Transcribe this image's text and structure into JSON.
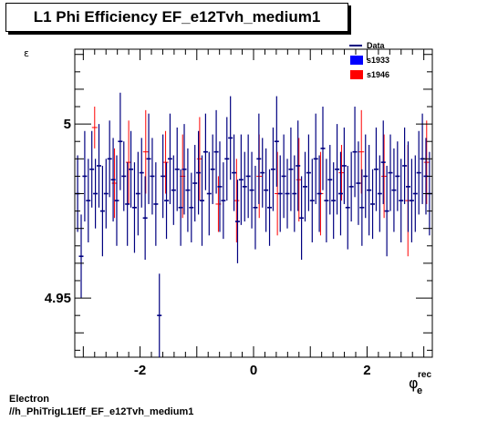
{
  "title": "L1 Phi Efficiency EF_e12Tvh_medium1",
  "footer": {
    "line1": "Electron",
    "line2": "//h_PhiTrigL1Eff_EF_e12Tvh_medium1"
  },
  "colors": {
    "data": "#000080",
    "s1933": "#0000ff",
    "s1946": "#ff0000",
    "axis": "#000000"
  },
  "chart_data": {
    "type": "scatter",
    "title": "L1 Phi Efficiency EF_e12Tvh_medium1",
    "xlabel": "φ_e^rec",
    "ylabel": "ε",
    "xlim": [
      -3.15,
      3.15
    ],
    "ylim": [
      4.933,
      5.0215
    ],
    "x_ticks": [
      -2,
      0,
      2
    ],
    "x_tick_labels": [
      "-2",
      "0",
      "2"
    ],
    "y_ticks": [
      4.95,
      5.0
    ],
    "y_tick_labels": [
      "4.95",
      "5"
    ],
    "grid": false,
    "legend_position": "top-right",
    "legend": [
      {
        "name": "Data",
        "style": "line"
      },
      {
        "name": "s1933",
        "style": "box"
      },
      {
        "name": "s1946",
        "style": "box"
      }
    ],
    "series": [
      {
        "name": "s1946",
        "x": [
          -2.8,
          -2.45,
          -2.2,
          -1.9,
          -1.55,
          -1.25,
          -0.95,
          -0.62,
          -0.3,
          0.1,
          0.42,
          0.8,
          1.18,
          1.55,
          1.9,
          2.3,
          2.72,
          3.05
        ],
        "y": [
          4.999,
          4.983,
          4.989,
          4.992,
          4.989,
          4.985,
          4.99,
          4.977,
          4.978,
          4.985,
          4.98,
          4.984,
          4.98,
          4.986,
          4.992,
          4.985,
          4.978,
          4.989
        ],
        "err": [
          0.006,
          0.01,
          0.012,
          0.012,
          0.009,
          0.012,
          0.012,
          0.008,
          0.012,
          0.012,
          0.012,
          0.012,
          0.012,
          0.008,
          0.012,
          0.012,
          0.016,
          0.012
        ]
      },
      {
        "name": "Data",
        "x_start": -3.1,
        "x_end": 3.1,
        "count": 100,
        "y": [
          4.98,
          4.962,
          4.985,
          4.978,
          4.987,
          4.98,
          4.988,
          4.975,
          4.98,
          4.99,
          4.984,
          4.978,
          4.995,
          4.985,
          4.977,
          4.987,
          4.976,
          4.98,
          4.986,
          4.973,
          4.99,
          4.985,
          4.977,
          4.945,
          4.985,
          4.978,
          4.99,
          4.981,
          4.987,
          4.976,
          4.987,
          4.981,
          4.976,
          4.983,
          4.986,
          4.978,
          4.992,
          4.98,
          4.987,
          4.992,
          4.982,
          4.978,
          4.99,
          4.996,
          4.986,
          4.972,
          4.984,
          4.982,
          4.985,
          4.981,
          4.976,
          4.99,
          4.986,
          4.981,
          4.976,
          4.987,
          4.995,
          4.98,
          4.985,
          4.98,
          4.987,
          4.98,
          4.988,
          4.973,
          4.982,
          4.986,
          4.978,
          4.99,
          4.98,
          4.993,
          4.978,
          4.984,
          4.978,
          4.987,
          4.98,
          4.988,
          4.976,
          4.982,
          4.992,
          4.983,
          4.976,
          4.985,
          4.981,
          4.977,
          4.987,
          4.98,
          4.989,
          4.975,
          4.986,
          4.981,
          4.985,
          4.978,
          4.988,
          4.982,
          4.978,
          4.98,
          4.986,
          4.99,
          4.985,
          4.98
        ],
        "err": [
          0.011,
          0.012,
          0.013,
          0.012,
          0.011,
          0.01,
          0.012,
          0.013,
          0.01,
          0.011,
          0.012,
          0.013,
          0.014,
          0.01,
          0.012,
          0.011,
          0.013,
          0.012,
          0.01,
          0.012,
          0.013,
          0.011,
          0.012,
          0.012,
          0.012,
          0.011,
          0.013,
          0.01,
          0.012,
          0.011,
          0.013,
          0.012,
          0.01,
          0.011,
          0.012,
          0.013,
          0.011,
          0.012,
          0.01,
          0.012,
          0.013,
          0.011,
          0.012,
          0.012,
          0.011,
          0.012,
          0.013,
          0.01,
          0.012,
          0.011,
          0.012,
          0.013,
          0.01,
          0.012,
          0.011,
          0.012,
          0.013,
          0.011,
          0.012,
          0.01,
          0.012,
          0.011,
          0.013,
          0.012,
          0.01,
          0.011,
          0.012,
          0.013,
          0.011,
          0.012,
          0.012,
          0.01,
          0.011,
          0.013,
          0.012,
          0.011,
          0.012,
          0.01,
          0.013,
          0.012,
          0.011,
          0.012,
          0.013,
          0.01,
          0.012,
          0.011,
          0.012,
          0.013,
          0.011,
          0.012,
          0.01,
          0.012,
          0.011,
          0.013,
          0.012,
          0.011,
          0.012,
          0.013,
          0.011,
          0.012
        ]
      }
    ]
  }
}
